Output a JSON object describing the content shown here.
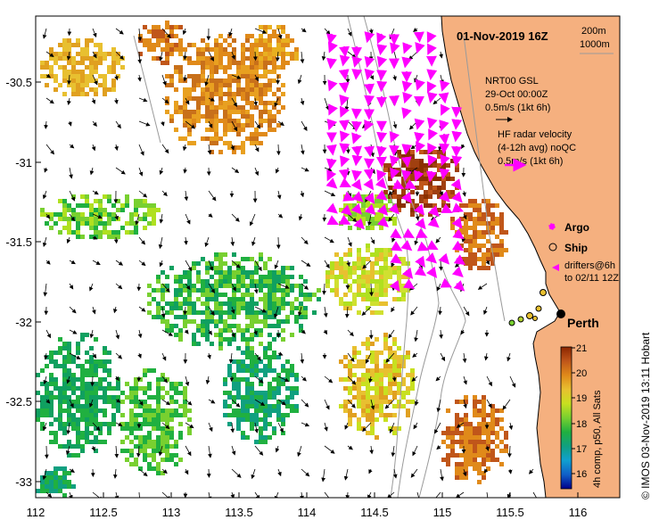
{
  "map": {
    "title": "01-Nov-2019 16Z",
    "credit": "© IMOS 03-Nov-2019 13:11 Hobart",
    "colors": {
      "land": "#f5b07f",
      "sea": "#ffffff",
      "arrow": "#000000",
      "hf_arrow": "#ff00ff",
      "contour": "#9a9a9a",
      "coast": "#000000"
    },
    "x_ticks": [
      "112",
      "112.5",
      "113",
      "113.5",
      "114",
      "114.5",
      "115",
      "115.5",
      "116"
    ],
    "y_ticks": [
      "-30.5",
      "-31",
      "-31.5",
      "-32",
      "-32.5",
      "-33"
    ],
    "x_range": [
      112,
      116.3
    ],
    "y_range": [
      -30.05,
      -33.15
    ],
    "legend": {
      "isobath_200": "200m",
      "isobath_1000": "1000m",
      "model_line1": "NRT00 GSL",
      "model_line2": "29-Oct 00:00Z",
      "model_line3": "0.5m/s (1kt 6h)",
      "hf_line1": "HF radar velocity",
      "hf_line2": "(4-12h avg) noQC",
      "hf_line3": "0.5m/s (1kt 6h)",
      "argo": "Argo",
      "ship": "Ship",
      "drifters_line1": "drifters@6h",
      "drifters_line2": "to 02/11 12Z"
    },
    "place_label": "Perth",
    "colorbar": {
      "caption": "4h comp, p50, All Sats",
      "ticks": [
        "21",
        "20",
        "19",
        "18",
        "17",
        "16"
      ],
      "range": [
        15.5,
        21
      ]
    }
  }
}
